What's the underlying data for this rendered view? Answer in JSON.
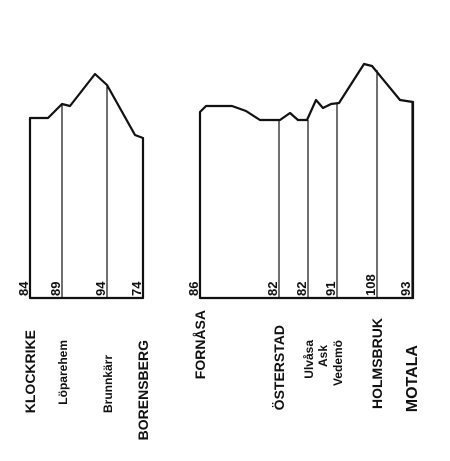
{
  "stations": [
    {
      "name": "KLOCKRIKE",
      "elevation": "84"
    },
    {
      "name": "Löparehem",
      "elevation": "89"
    },
    {
      "name": "Brunnkärr",
      "elevation": "94"
    },
    {
      "name": "BORENSBERG",
      "elevation": "74"
    },
    {
      "name": "FORNÅSA",
      "elevation": "86"
    },
    {
      "name": "ÖSTERSTAD",
      "elevation": "82"
    },
    {
      "name": "Ulvåsa",
      "elevation": "82"
    },
    {
      "name": "Ask",
      "elevation": null
    },
    {
      "name": "Vedemö",
      "elevation": "91"
    },
    {
      "name": "HOLMSBRUK",
      "elevation": "108"
    },
    {
      "name": "MOTALA",
      "elevation": "93"
    }
  ]
}
